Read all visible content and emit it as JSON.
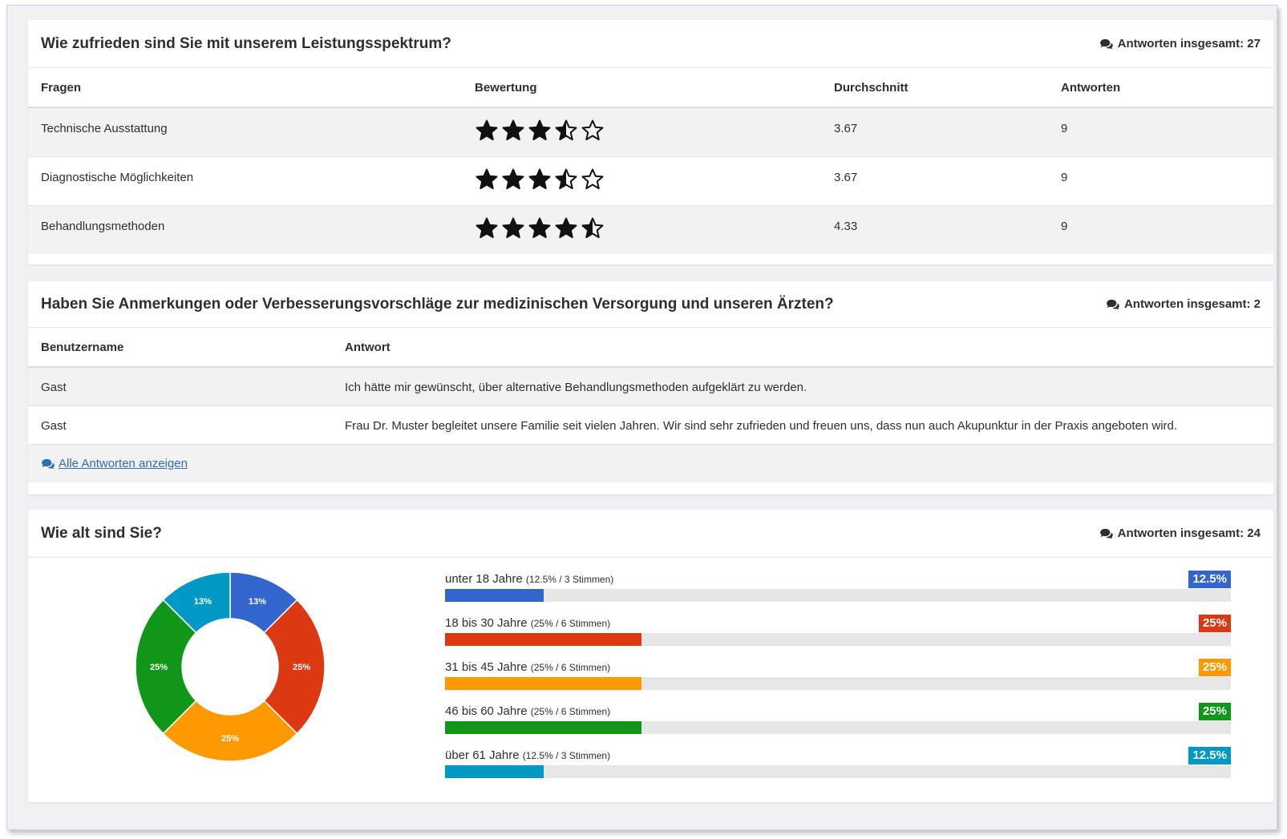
{
  "ratings_panel": {
    "title": "Wie zufrieden sind Sie mit unserem Leistungsspektrum?",
    "count_label": "Antworten insgesamt: 27",
    "headers": [
      "Fragen",
      "Bewertung",
      "Durchschnitt",
      "Antworten"
    ],
    "rows": [
      {
        "question": "Technische Ausstattung",
        "average": "3.67",
        "answers": "9",
        "rating": 3.67
      },
      {
        "question": "Diagnostische Möglichkeiten",
        "average": "3.67",
        "answers": "9",
        "rating": 3.67
      },
      {
        "question": "Behandlungsmethoden",
        "average": "4.33",
        "answers": "9",
        "rating": 4.33
      }
    ]
  },
  "comments_panel": {
    "title": "Haben Sie Anmerkungen oder Verbesserungsvorschläge zur medizinischen Versorgung und unseren Ärzten?",
    "count_label": "Antworten insgesamt: 2",
    "headers": [
      "Benutzername",
      "Antwort"
    ],
    "rows": [
      {
        "user": "Gast",
        "answer": "Ich hätte mir gewünscht, über alternative Behandlungsmethoden aufgeklärt zu werden."
      },
      {
        "user": "Gast",
        "answer": "Frau Dr. Muster begleitet unsere Familie seit vielen Jahren. Wir sind sehr zufrieden und freuen uns, dass nun auch Akupunktur in der Praxis angeboten wird."
      }
    ],
    "show_all_label": "Alle Antworten anzeigen"
  },
  "age_panel": {
    "title": "Wie alt sind Sie?",
    "count_label": "Antworten insgesamt: 24",
    "items": [
      {
        "label": "unter 18 Jahre",
        "detail": "(12.5% / 3 Stimmen)",
        "badge": "12.5%",
        "pie_label": "13%",
        "share": 0.125,
        "color": "#3366cc"
      },
      {
        "label": "18 bis 30 Jahre",
        "detail": "(25% / 6 Stimmen)",
        "badge": "25%",
        "pie_label": "25%",
        "share": 0.25,
        "color": "#dc3912"
      },
      {
        "label": "31 bis 45 Jahre",
        "detail": "(25% / 6 Stimmen)",
        "badge": "25%",
        "pie_label": "25%",
        "share": 0.25,
        "color": "#ff9900"
      },
      {
        "label": "46 bis 60 Jahre",
        "detail": "(25% / 6 Stimmen)",
        "badge": "25%",
        "pie_label": "25%",
        "share": 0.25,
        "color": "#109618"
      },
      {
        "label": "über 61 Jahre",
        "detail": "(12.5% / 3 Stimmen)",
        "badge": "12.5%",
        "pie_label": "13%",
        "share": 0.125,
        "color": "#0099c6"
      }
    ]
  },
  "chart_data": {
    "type": "pie",
    "categories": [
      "unter 18 Jahre",
      "18 bis 30 Jahre",
      "31 bis 45 Jahre",
      "46 bis 60 Jahre",
      "über 61 Jahre"
    ],
    "values": [
      3,
      6,
      6,
      6,
      3
    ],
    "slice_labels": [
      "13%",
      "25%",
      "25%",
      "25%",
      "13%"
    ],
    "colors": [
      "#3366cc",
      "#dc3912",
      "#ff9900",
      "#109618",
      "#0099c6"
    ],
    "title": "Wie alt sind Sie?"
  }
}
